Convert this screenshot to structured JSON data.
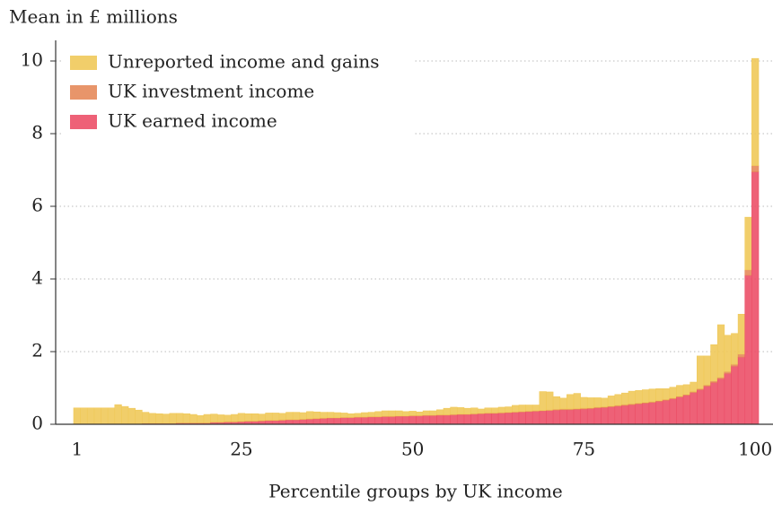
{
  "chart_data": {
    "type": "stacked_bar",
    "y_label": "Mean in £ millions",
    "x_label": "Percentile groups by UK income",
    "x": [
      1,
      2,
      3,
      4,
      5,
      6,
      7,
      8,
      9,
      10,
      11,
      12,
      13,
      14,
      15,
      16,
      17,
      18,
      19,
      20,
      21,
      22,
      23,
      24,
      25,
      26,
      27,
      28,
      29,
      30,
      31,
      32,
      33,
      34,
      35,
      36,
      37,
      38,
      39,
      40,
      41,
      42,
      43,
      44,
      45,
      46,
      47,
      48,
      49,
      50,
      51,
      52,
      53,
      54,
      55,
      56,
      57,
      58,
      59,
      60,
      61,
      62,
      63,
      64,
      65,
      66,
      67,
      68,
      69,
      70,
      71,
      72,
      73,
      74,
      75,
      76,
      77,
      78,
      79,
      80,
      81,
      82,
      83,
      84,
      85,
      86,
      87,
      88,
      89,
      90,
      91,
      92,
      93,
      94,
      95,
      96,
      97,
      98,
      99,
      100
    ],
    "xlim": [
      0.5,
      100.5
    ],
    "xticks": [
      1,
      25,
      50,
      75,
      100
    ],
    "ylim": [
      0,
      10.5
    ],
    "yticks": [
      0,
      2,
      4,
      6,
      8,
      10
    ],
    "grid": true,
    "legend": "upper left",
    "series": [
      {
        "name": "Unreported income and gains",
        "color": "#f0c95a",
        "values": [
          0.44,
          0.44,
          0.44,
          0.44,
          0.44,
          0.43,
          0.52,
          0.47,
          0.42,
          0.37,
          0.3,
          0.27,
          0.26,
          0.25,
          0.27,
          0.26,
          0.25,
          0.23,
          0.2,
          0.23,
          0.22,
          0.2,
          0.18,
          0.2,
          0.22,
          0.2,
          0.2,
          0.18,
          0.2,
          0.2,
          0.18,
          0.2,
          0.2,
          0.18,
          0.2,
          0.18,
          0.16,
          0.15,
          0.14,
          0.12,
          0.1,
          0.1,
          0.12,
          0.12,
          0.14,
          0.15,
          0.15,
          0.14,
          0.12,
          0.12,
          0.1,
          0.12,
          0.12,
          0.14,
          0.18,
          0.2,
          0.18,
          0.16,
          0.16,
          0.12,
          0.14,
          0.14,
          0.15,
          0.15,
          0.18,
          0.18,
          0.17,
          0.16,
          0.52,
          0.5,
          0.35,
          0.3,
          0.4,
          0.42,
          0.3,
          0.28,
          0.26,
          0.24,
          0.28,
          0.3,
          0.32,
          0.35,
          0.35,
          0.35,
          0.35,
          0.33,
          0.3,
          0.3,
          0.3,
          0.27,
          0.26,
          0.9,
          0.8,
          1.0,
          1.45,
          1.0,
          0.85,
          1.1,
          1.45,
          2.95
        ]
      },
      {
        "name": "UK investment income",
        "color": "#e5895a",
        "values": [
          0.01,
          0.01,
          0.01,
          0.01,
          0.01,
          0.01,
          0.01,
          0.01,
          0.01,
          0.01,
          0.01,
          0.01,
          0.01,
          0.01,
          0.01,
          0.01,
          0.01,
          0.01,
          0.01,
          0.01,
          0.01,
          0.01,
          0.01,
          0.01,
          0.01,
          0.01,
          0.01,
          0.01,
          0.01,
          0.01,
          0.01,
          0.01,
          0.01,
          0.01,
          0.01,
          0.01,
          0.01,
          0.01,
          0.01,
          0.01,
          0.01,
          0.01,
          0.01,
          0.01,
          0.01,
          0.01,
          0.01,
          0.01,
          0.01,
          0.01,
          0.01,
          0.01,
          0.01,
          0.01,
          0.01,
          0.01,
          0.01,
          0.01,
          0.01,
          0.01,
          0.01,
          0.01,
          0.01,
          0.01,
          0.01,
          0.01,
          0.01,
          0.01,
          0.01,
          0.01,
          0.02,
          0.02,
          0.02,
          0.02,
          0.02,
          0.02,
          0.02,
          0.02,
          0.02,
          0.02,
          0.02,
          0.02,
          0.02,
          0.02,
          0.02,
          0.02,
          0.02,
          0.02,
          0.02,
          0.02,
          0.03,
          0.03,
          0.03,
          0.04,
          0.04,
          0.05,
          0.05,
          0.08,
          0.15,
          0.17
        ]
      },
      {
        "name": "UK earned income",
        "color": "#ec5068",
        "values": [
          0,
          0,
          0,
          0,
          0,
          0.01,
          0.01,
          0.01,
          0.01,
          0.01,
          0.02,
          0.02,
          0.02,
          0.02,
          0.02,
          0.03,
          0.03,
          0.03,
          0.03,
          0.03,
          0.05,
          0.05,
          0.06,
          0.06,
          0.07,
          0.08,
          0.08,
          0.09,
          0.1,
          0.1,
          0.11,
          0.12,
          0.12,
          0.13,
          0.14,
          0.15,
          0.16,
          0.17,
          0.17,
          0.18,
          0.18,
          0.19,
          0.19,
          0.2,
          0.2,
          0.21,
          0.21,
          0.22,
          0.22,
          0.23,
          0.23,
          0.24,
          0.24,
          0.25,
          0.25,
          0.26,
          0.27,
          0.27,
          0.28,
          0.29,
          0.3,
          0.3,
          0.31,
          0.32,
          0.33,
          0.34,
          0.35,
          0.36,
          0.37,
          0.38,
          0.39,
          0.4,
          0.4,
          0.41,
          0.42,
          0.43,
          0.45,
          0.46,
          0.48,
          0.5,
          0.52,
          0.54,
          0.56,
          0.58,
          0.6,
          0.63,
          0.66,
          0.7,
          0.75,
          0.8,
          0.87,
          0.95,
          1.05,
          1.15,
          1.25,
          1.4,
          1.6,
          1.85,
          4.1,
          6.95
        ]
      }
    ]
  }
}
